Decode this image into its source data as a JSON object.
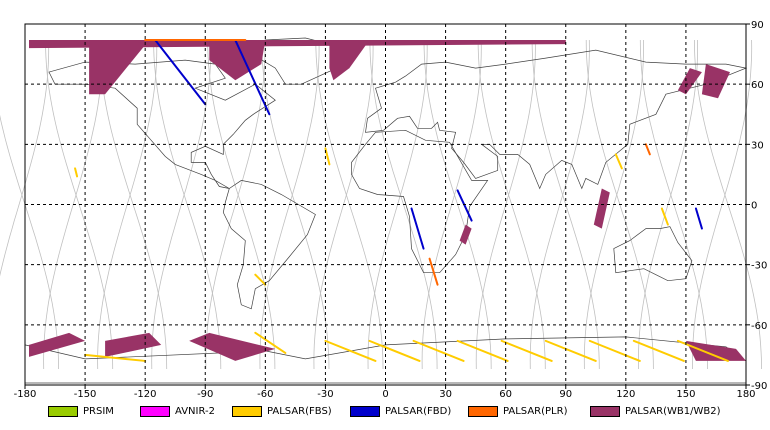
{
  "map": {
    "x_ticks": [
      "-180",
      "-150",
      "-120",
      "-90",
      "-60",
      "-30",
      "0",
      "30",
      "60",
      "90",
      "120",
      "150",
      "180"
    ],
    "y_ticks_right": [
      "90",
      "60",
      "30",
      "0",
      "-30",
      "-60",
      "-90"
    ],
    "lon_range": [
      -180,
      180
    ],
    "lat_range": [
      -90,
      90
    ],
    "grid": "dashed",
    "colors": {
      "frame": "#000000",
      "grid": "#000000",
      "orbit_track": "#c0c0c0",
      "coastline": "#404040"
    }
  },
  "legend": {
    "items": [
      {
        "label": "PRSIM",
        "color": "#99cc00"
      },
      {
        "label": "AVNIR-2",
        "color": "#ff00ff"
      },
      {
        "label": "PALSAR(FBS)",
        "color": "#ffcc00"
      },
      {
        "label": "PALSAR(FBD)",
        "color": "#0000cc"
      },
      {
        "label": "PALSAR(PLR)",
        "color": "#ff6600"
      },
      {
        "label": "PALSAR(WB1/WB2)",
        "color": "#993366"
      }
    ]
  }
}
